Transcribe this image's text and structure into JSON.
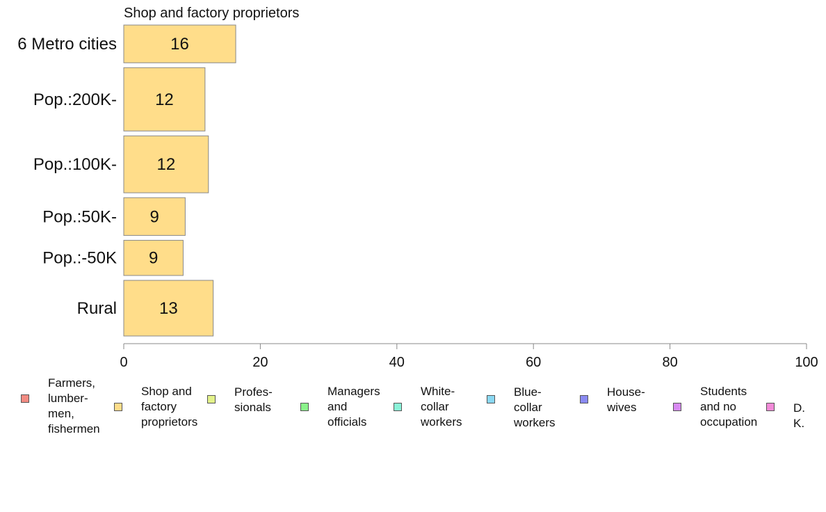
{
  "chart_data": {
    "type": "bar",
    "orientation": "horizontal",
    "title": "Shop and factory proprietors",
    "xlabel": "",
    "ylabel": "",
    "xlim": [
      0,
      100
    ],
    "x_ticks": [
      "0",
      "20",
      "40",
      "60",
      "80",
      "100"
    ],
    "categories": [
      "6 Metro cities",
      "Pop.:200K-",
      "Pop.:100K-",
      "Pop.:50K-",
      "Pop.:-50K",
      "Rural"
    ],
    "bar_widths_relative": [
      0.59,
      0.99,
      0.89,
      0.59,
      0.55,
      0.87
    ],
    "series": [
      {
        "name": "Shop and factory proprietors",
        "color": "#FFDD8A",
        "values": [
          16.4,
          11.9,
          12.4,
          9.0,
          8.7,
          13.1
        ],
        "labels": [
          "16",
          "12",
          "12",
          "9",
          "9",
          "13"
        ]
      }
    ],
    "grid": false,
    "legend_position": "bottom"
  },
  "legend": [
    {
      "label": "Farmers,\nlumber-\nmen,\nfishermen",
      "color": "#F28B82"
    },
    {
      "label": "Shop and\nfactory\nproprietors",
      "color": "#FFDD8A"
    },
    {
      "label": "Profes-\nsionals",
      "color": "#E3F28A"
    },
    {
      "label": "Managers\nand\nofficials",
      "color": "#8AF28A"
    },
    {
      "label": "White-\ncollar\nworkers",
      "color": "#8AF2D8"
    },
    {
      "label": "Blue-collar\nworkers",
      "color": "#8AD8F2"
    },
    {
      "label": "House-\nwives",
      "color": "#8A8AF2"
    },
    {
      "label": "Students\nand no\noccupation",
      "color": "#D88AF2"
    },
    {
      "label": "D. K.",
      "color": "#F28AD8"
    }
  ]
}
